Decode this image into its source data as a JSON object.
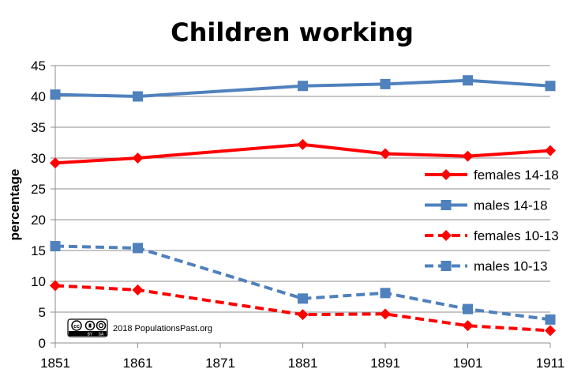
{
  "chart_data": {
    "type": "line",
    "title": "Children working",
    "xlabel": "",
    "ylabel": "percentage",
    "x": [
      1851,
      1861,
      1871,
      1881,
      1891,
      1901,
      1911
    ],
    "ylim": [
      0,
      45
    ],
    "yticks": [
      0,
      5,
      10,
      15,
      20,
      25,
      30,
      35,
      40,
      45
    ],
    "grid": true,
    "legend_position": "right",
    "series": [
      {
        "name": "females 14-18",
        "color": "#ff0000",
        "marker": "diamond",
        "dashed": false,
        "points": [
          [
            1851,
            29.2
          ],
          [
            1861,
            30.0
          ],
          [
            1881,
            32.2
          ],
          [
            1891,
            30.7
          ],
          [
            1901,
            30.3
          ],
          [
            1911,
            31.2
          ]
        ]
      },
      {
        "name": "males 14-18",
        "color": "#4f81bd",
        "marker": "square",
        "dashed": false,
        "points": [
          [
            1851,
            40.3
          ],
          [
            1861,
            40.0
          ],
          [
            1881,
            41.7
          ],
          [
            1891,
            42.0
          ],
          [
            1901,
            42.6
          ],
          [
            1911,
            41.7
          ]
        ]
      },
      {
        "name": "females 10-13",
        "color": "#ff0000",
        "marker": "diamond",
        "dashed": true,
        "points": [
          [
            1851,
            9.3
          ],
          [
            1861,
            8.6
          ],
          [
            1881,
            4.6
          ],
          [
            1891,
            4.7
          ],
          [
            1901,
            2.8
          ],
          [
            1911,
            2.0
          ]
        ]
      },
      {
        "name": "males 10-13",
        "color": "#4f81bd",
        "marker": "square",
        "dashed": true,
        "points": [
          [
            1851,
            15.7
          ],
          [
            1861,
            15.4
          ],
          [
            1881,
            7.2
          ],
          [
            1891,
            8.1
          ],
          [
            1901,
            5.5
          ],
          [
            1911,
            3.8
          ]
        ]
      }
    ],
    "credit": {
      "text": "2018 PopulationsPast.org",
      "license_labels": [
        "BY",
        "SA"
      ]
    }
  }
}
